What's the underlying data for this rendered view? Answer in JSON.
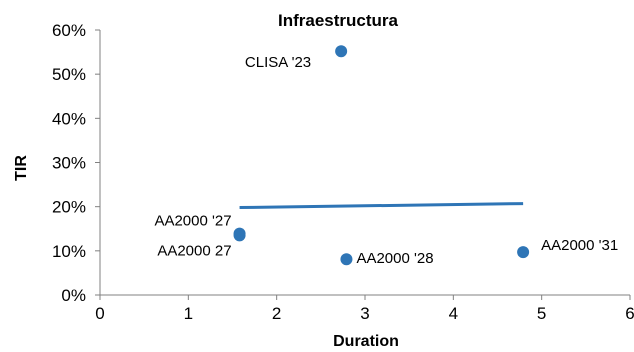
{
  "chart_data": {
    "type": "scatter",
    "title": "Infraestructura",
    "xlabel": "Duration",
    "ylabel": "TIR",
    "xlim": [
      0,
      6
    ],
    "ylim": [
      0,
      0.6
    ],
    "x_ticks": [
      0,
      1,
      2,
      3,
      4,
      5,
      6
    ],
    "y_ticks": [
      "0%",
      "10%",
      "20%",
      "30%",
      "40%",
      "50%",
      "60%"
    ],
    "y_tick_values": [
      0,
      0.1,
      0.2,
      0.3,
      0.4,
      0.5,
      0.6
    ],
    "grid": false,
    "points": [
      {
        "label": "CLISA '23",
        "x": 2.73,
        "y": 0.552
      },
      {
        "label": "AA2000 '27",
        "x": 1.58,
        "y": 0.139
      },
      {
        "label": "AA2000 27",
        "x": 1.58,
        "y": 0.135
      },
      {
        "label": "AA2000 '28",
        "x": 2.79,
        "y": 0.081
      },
      {
        "label": "AA2000 '31",
        "x": 4.79,
        "y": 0.097
      }
    ],
    "trendline": {
      "x": [
        1.58,
        4.79
      ],
      "y": [
        0.198,
        0.207
      ]
    },
    "colors": {
      "marker": "#2E75B6",
      "trendline": "#2E75B6",
      "axis": "#808080"
    }
  }
}
